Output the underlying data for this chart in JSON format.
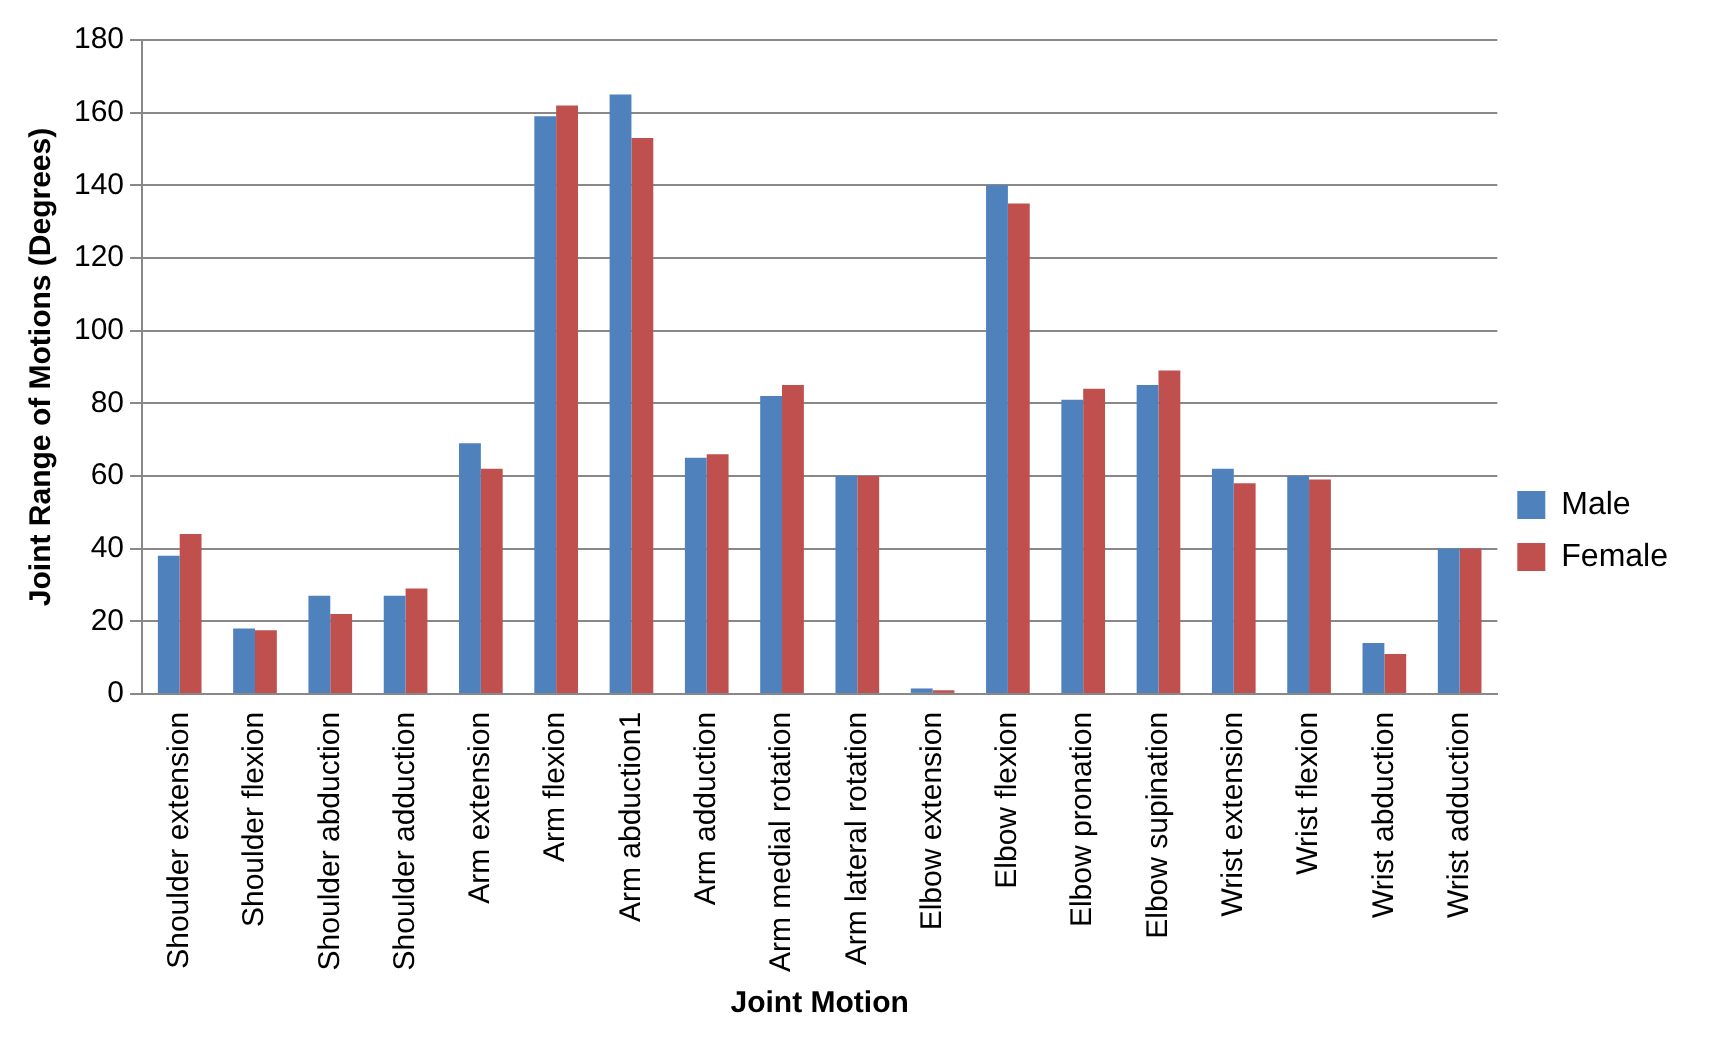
{
  "chart_data": {
    "type": "bar",
    "xlabel": "Joint Motion",
    "ylabel": "Joint Range of Motions (Degrees)",
    "categories": [
      "Shoulder extension",
      "Shoulder flexion",
      "Shoulder abduction",
      "Shoulder adduction",
      "Arm extension",
      "Arm flexion",
      "Arm abduction1",
      "Arm adduction",
      "Arm medial rotation",
      "Arm lateral rotation",
      "Elbow extension",
      "Elbow flexion",
      "Elbow pronation",
      "Elbow supination",
      "Wrist extension",
      "Wrist flexion",
      "Wrist abduction",
      "Wrist adduction"
    ],
    "series": [
      {
        "name": "Male",
        "color": "#4f81bd",
        "values": [
          38,
          18,
          27,
          27,
          69,
          159,
          165,
          65,
          82,
          60,
          1.5,
          140,
          81,
          85,
          62,
          60,
          14,
          40
        ]
      },
      {
        "name": "Female",
        "color": "#c0504d",
        "values": [
          44,
          17.5,
          22,
          29,
          62,
          162,
          153,
          66,
          85,
          60,
          1,
          135,
          84,
          89,
          58,
          59,
          11,
          40
        ]
      }
    ],
    "ylim": [
      0,
      180
    ],
    "yticks": [
      0,
      20,
      40,
      60,
      80,
      100,
      120,
      140,
      160,
      180
    ],
    "grid": "y",
    "legend": "right"
  }
}
